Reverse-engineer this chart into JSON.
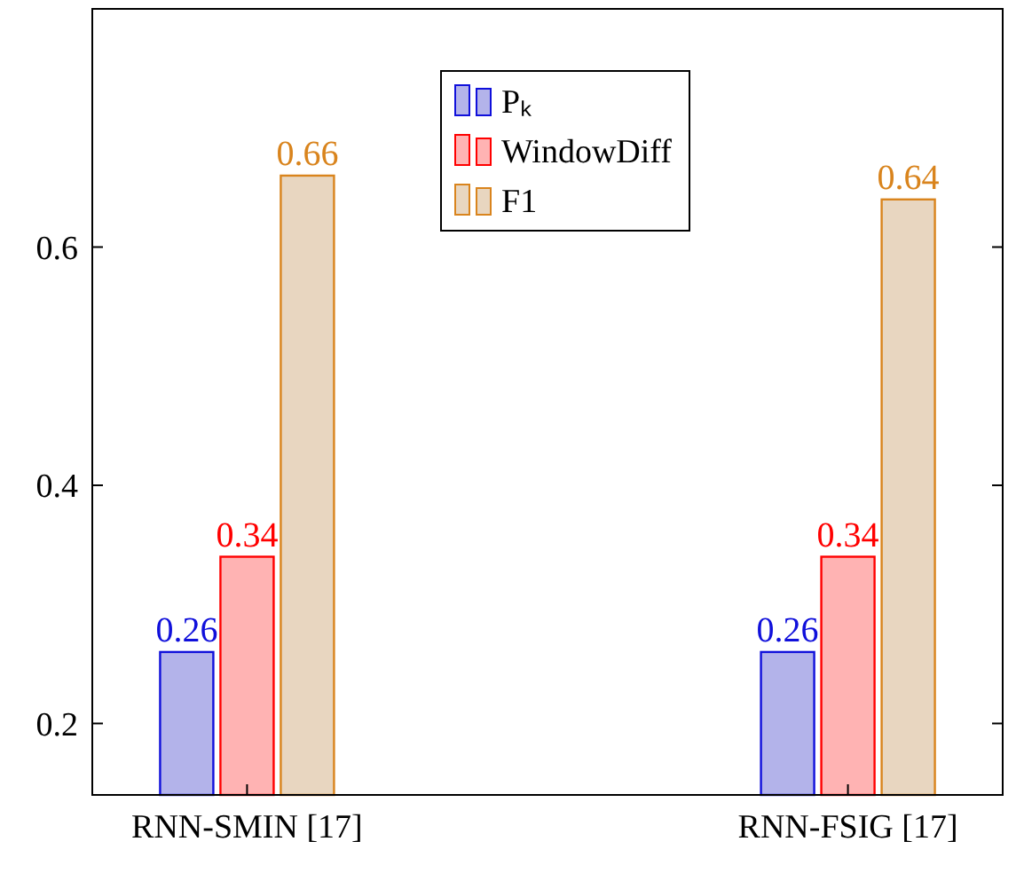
{
  "chart_data": {
    "type": "bar",
    "categories": [
      "RNN-SMIN [17]",
      "RNN-FSIG [17]"
    ],
    "series": [
      {
        "name": "Pₖ",
        "color": "#b3b3ea",
        "values": [
          0.26,
          0.26
        ]
      },
      {
        "name": "WindowDiff",
        "color": "#ffb3b3",
        "values": [
          0.34,
          0.34
        ]
      },
      {
        "name": "F1",
        "color": "#e8d6c0",
        "values": [
          0.66,
          0.64
        ]
      }
    ],
    "ylim": [
      0.14,
      0.8
    ],
    "yticks": [
      0.2,
      0.4,
      0.6
    ],
    "data_labels": true,
    "legend": "top",
    "grid": false
  }
}
